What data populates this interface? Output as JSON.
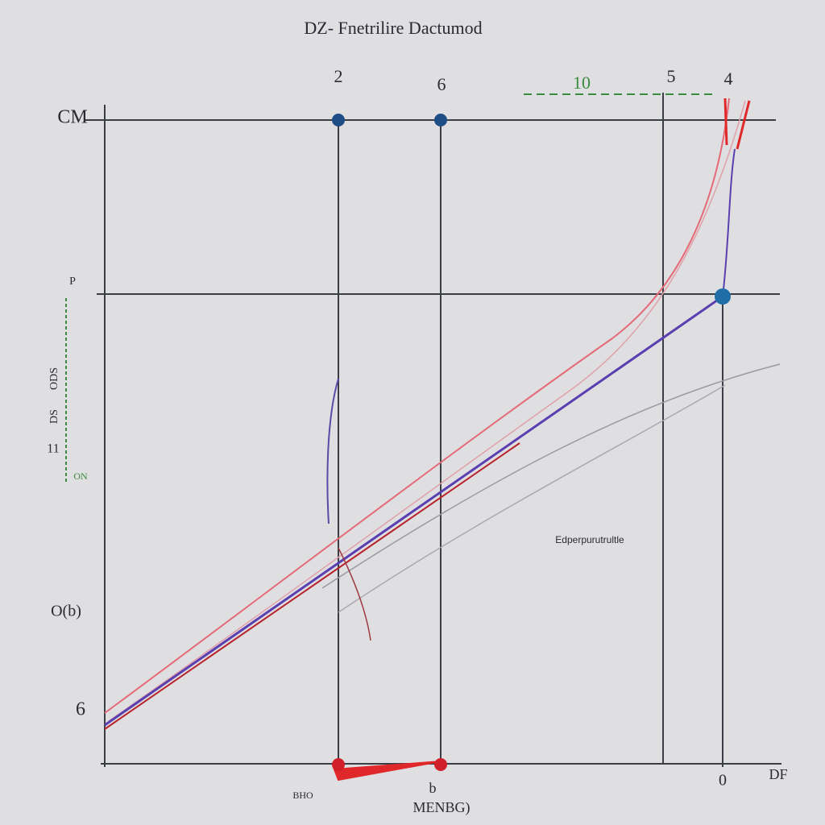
{
  "header": {
    "title": "DZ- Fnetrilire Dactumod"
  },
  "top_labels": [
    "2",
    "6",
    "10",
    "5",
    "4"
  ],
  "left_labels": [
    "CM",
    "P",
    "ODS",
    "DS",
    "11",
    "ON",
    "O(b)",
    "6"
  ],
  "annotation": "Edperpurutrultle",
  "bottom_labels": [
    "BHO",
    "b",
    "MENBG)",
    "0",
    "DF"
  ]
}
